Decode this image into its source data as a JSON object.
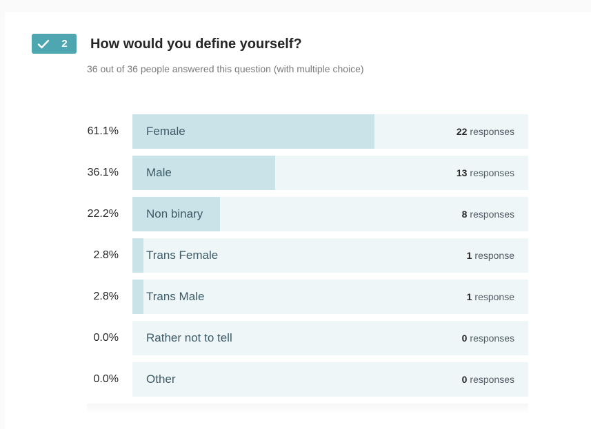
{
  "question": {
    "number": "2",
    "title": "How would you define yourself?",
    "subtitle": "36 out of 36 people answered this question (with multiple choice)"
  },
  "icons": {
    "answered": "check-icon"
  },
  "colors": {
    "badge": "#4ea6b1",
    "bar_track": "#eef6f8",
    "bar_fill": "#c9e3e8"
  },
  "options": [
    {
      "percent_label": "61.1%",
      "fraction": 0.611,
      "label": "Female",
      "count": "22",
      "count_word": "responses"
    },
    {
      "percent_label": "36.1%",
      "fraction": 0.361,
      "label": "Male",
      "count": "13",
      "count_word": "responses"
    },
    {
      "percent_label": "22.2%",
      "fraction": 0.222,
      "label": "Non binary",
      "count": "8",
      "count_word": "responses"
    },
    {
      "percent_label": "2.8%",
      "fraction": 0.028,
      "label": "Trans Female",
      "count": "1",
      "count_word": "response"
    },
    {
      "percent_label": "2.8%",
      "fraction": 0.028,
      "label": "Trans Male",
      "count": "1",
      "count_word": "response"
    },
    {
      "percent_label": "0.0%",
      "fraction": 0.0,
      "label": "Rather not to tell",
      "count": "0",
      "count_word": "responses"
    },
    {
      "percent_label": "0.0%",
      "fraction": 0.0,
      "label": "Other",
      "count": "0",
      "count_word": "responses"
    }
  ]
}
